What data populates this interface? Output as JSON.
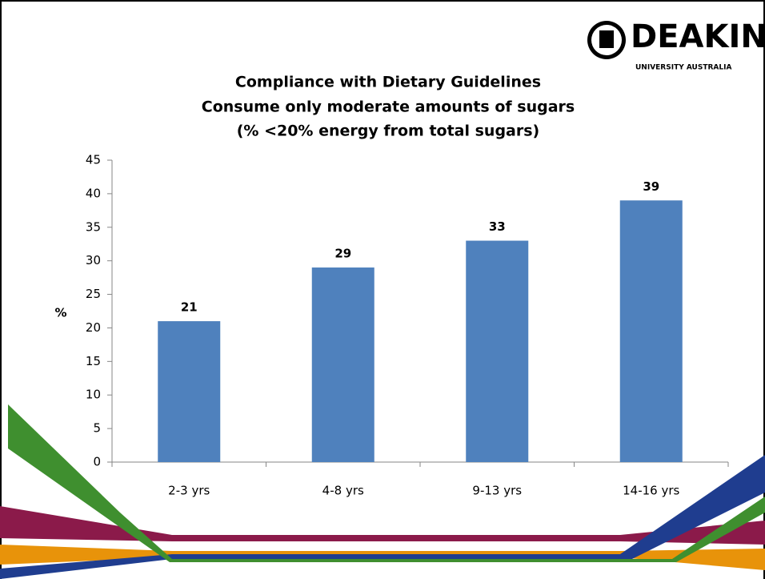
{
  "logo": {
    "name": "DEAKIN",
    "tagline": "UNIVERSITY AUSTRALIA"
  },
  "chart_data": {
    "type": "bar",
    "title": [
      "Compliance with Dietary Guidelines",
      "Consume only moderate amounts of sugars",
      "(% <20% energy from total sugars)"
    ],
    "y_label": "%",
    "categories": [
      "2-3 yrs",
      "4-8 yrs",
      "9-13 yrs",
      "14-16 yrs"
    ],
    "values": [
      21,
      29,
      33,
      39
    ],
    "color": "#4f81bd",
    "ylim": [
      0,
      45
    ],
    "yticks": [
      0,
      5,
      10,
      15,
      20,
      25,
      30,
      35,
      40,
      45
    ],
    "grid": false
  }
}
